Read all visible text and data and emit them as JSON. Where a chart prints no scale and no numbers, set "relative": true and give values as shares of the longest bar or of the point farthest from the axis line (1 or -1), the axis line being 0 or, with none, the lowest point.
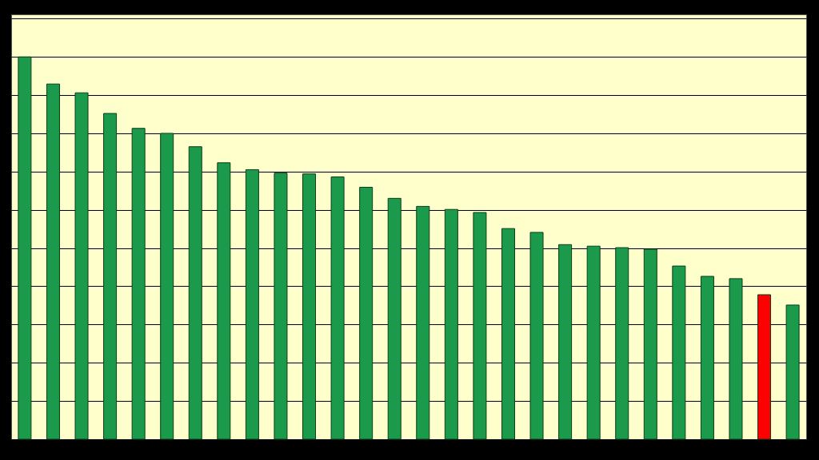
{
  "chart_data": {
    "type": "bar",
    "relative": true,
    "grid": "y",
    "categories": [
      null,
      null,
      null,
      null,
      null,
      null,
      null,
      null,
      null,
      null,
      null,
      null,
      null,
      null,
      null,
      null,
      null,
      null,
      null,
      null,
      null,
      null,
      null,
      null,
      null,
      null,
      null,
      null
    ],
    "values": [
      1,
      0.929,
      0.906,
      0.852,
      0.813,
      0.8,
      0.765,
      0.723,
      0.705,
      0.696,
      0.694,
      0.686,
      0.659,
      0.63,
      0.609,
      0.601,
      0.593,
      0.551,
      0.541,
      0.509,
      0.505,
      0.501,
      0.497,
      0.453,
      0.426,
      0.42,
      0.378,
      0.351
    ],
    "colors": [
      "#1a9a4a",
      "#1a9a4a",
      "#1a9a4a",
      "#1a9a4a",
      "#1a9a4a",
      "#1a9a4a",
      "#1a9a4a",
      "#1a9a4a",
      "#1a9a4a",
      "#1a9a4a",
      "#1a9a4a",
      "#1a9a4a",
      "#1a9a4a",
      "#1a9a4a",
      "#1a9a4a",
      "#1a9a4a",
      "#1a9a4a",
      "#1a9a4a",
      "#1a9a4a",
      "#1a9a4a",
      "#1a9a4a",
      "#1a9a4a",
      "#1a9a4a",
      "#1a9a4a",
      "#1a9a4a",
      "#1a9a4a",
      "#ff0000",
      "#1a9a4a"
    ]
  }
}
